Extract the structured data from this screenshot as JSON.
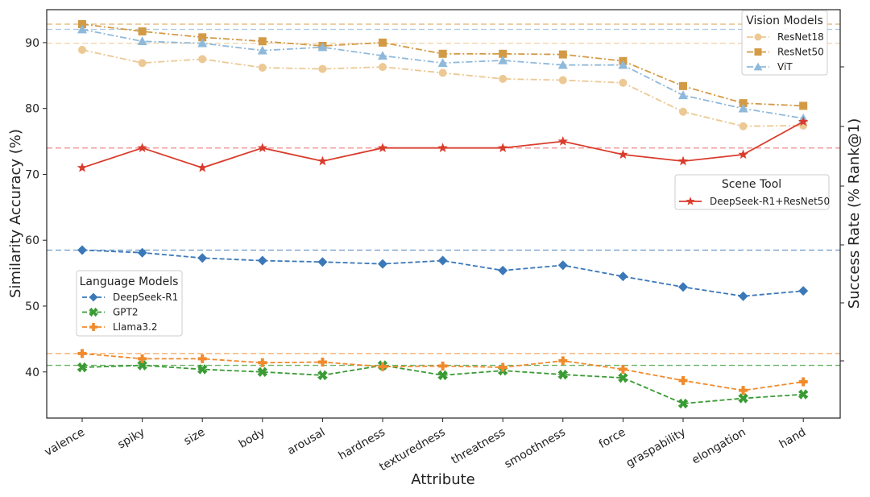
{
  "chart_data": {
    "type": "line",
    "xlabel": "Attribute",
    "ylabel": "Similarity Accuracy (%)",
    "y2label": "Success Rate (% Rank@1)",
    "categories": [
      "valence",
      "spiky",
      "size",
      "body",
      "arousal",
      "hardness",
      "texturedness",
      "threatness",
      "smoothness",
      "force",
      "graspability",
      "elongation",
      "hand"
    ],
    "ylim": [
      33,
      95
    ],
    "yticks": [
      40,
      50,
      60,
      70,
      80,
      90
    ],
    "grid": false,
    "legends": [
      {
        "title": "Vision Models",
        "placement": "top-right",
        "series": [
          "ResNet18",
          "ResNet50",
          "ViT"
        ]
      },
      {
        "title": "Scene Tool",
        "placement": "center-right",
        "series": [
          "DeepSeek-R1+ResNet50"
        ]
      },
      {
        "title": "Language Models",
        "placement": "center-left",
        "series": [
          "DeepSeek-R1",
          "GPT2",
          "Llama3.2"
        ]
      }
    ],
    "series": [
      {
        "name": "ResNet18",
        "color": "#ecc994",
        "marker": "circle",
        "dash": "dashdot",
        "values": [
          88.9,
          86.9,
          87.5,
          86.2,
          86.0,
          86.3,
          85.4,
          84.5,
          84.3,
          83.9,
          79.5,
          77.3,
          77.4
        ]
      },
      {
        "name": "ResNet50",
        "color": "#d39a45",
        "marker": "square",
        "dash": "dashdot",
        "values": [
          92.8,
          91.7,
          90.8,
          90.2,
          89.5,
          90.0,
          88.3,
          88.3,
          88.2,
          87.2,
          83.4,
          80.8,
          80.4
        ]
      },
      {
        "name": "ViT",
        "color": "#8fb9db",
        "marker": "triangle",
        "dash": "dashdot",
        "values": [
          92.0,
          90.2,
          89.9,
          88.8,
          89.3,
          88.0,
          86.9,
          87.3,
          86.6,
          86.6,
          82.0,
          80.0,
          78.5
        ]
      },
      {
        "name": "DeepSeek-R1+ResNet50",
        "color": "#d93c2c",
        "marker": "star",
        "dash": "solid",
        "values": [
          71,
          74,
          71,
          74,
          72,
          74,
          74,
          74,
          75,
          73,
          72,
          73,
          78
        ]
      },
      {
        "name": "DeepSeek-R1",
        "color": "#3b78b8",
        "marker": "diamond",
        "dash": "dashed",
        "values": [
          58.5,
          58.1,
          57.3,
          56.9,
          56.7,
          56.4,
          56.9,
          55.4,
          56.2,
          54.5,
          52.9,
          51.5,
          52.3
        ]
      },
      {
        "name": "GPT2",
        "color": "#3a9b34",
        "marker": "x",
        "dash": "dashed",
        "values": [
          40.7,
          41.0,
          40.4,
          40.0,
          39.5,
          41.0,
          39.5,
          40.2,
          39.6,
          39.1,
          35.2,
          36.0,
          36.6
        ]
      },
      {
        "name": "Llama3.2",
        "color": "#f08a2c",
        "marker": "plus",
        "dash": "dashed",
        "values": [
          42.8,
          42.0,
          42.0,
          41.4,
          41.5,
          40.8,
          40.9,
          40.7,
          41.7,
          40.4,
          38.7,
          37.2,
          38.5
        ]
      }
    ],
    "reference_lines": [
      {
        "value": 92.8,
        "color": "#d39a45"
      },
      {
        "value": 92.0,
        "color": "#8fb9db"
      },
      {
        "value": 89.9,
        "color": "#ecc994"
      },
      {
        "value": 74.0,
        "color": "#e86060"
      },
      {
        "value": 58.5,
        "color": "#3b78b8"
      },
      {
        "value": 42.8,
        "color": "#f08a2c"
      },
      {
        "value": 41.0,
        "color": "#3a9b34"
      }
    ]
  }
}
